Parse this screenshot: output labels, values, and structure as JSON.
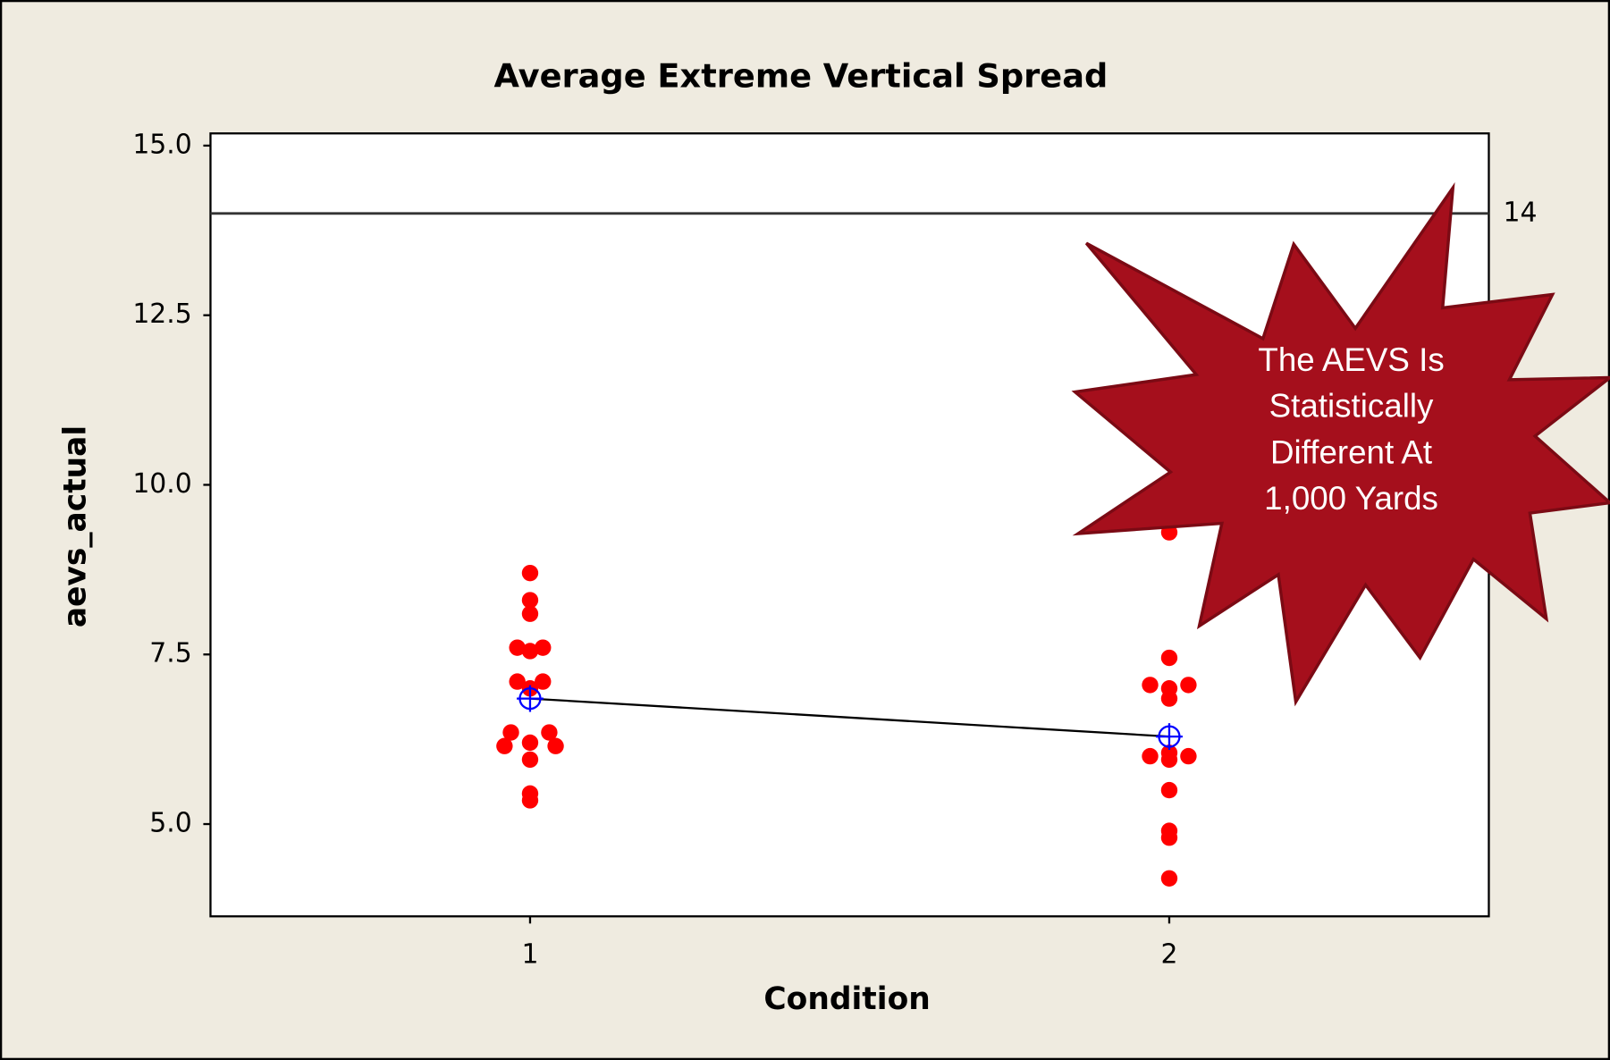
{
  "chart_data": {
    "type": "scatter",
    "title": "Average Extreme Vertical Spread",
    "x_label": "Condition",
    "y_label": "aevs_actual",
    "xlim": [
      0.5,
      2.5
    ],
    "ylim": [
      3.64,
      15.18
    ],
    "xticks": [
      1,
      2
    ],
    "yticks": [
      {
        "value": 5,
        "label": "5.0"
      },
      {
        "value": 7.5,
        "label": "7.5"
      },
      {
        "value": 10,
        "label": "10.0"
      },
      {
        "value": 12.5,
        "label": "12.5"
      },
      {
        "value": 15,
        "label": "15.0"
      }
    ],
    "reference_line": 14,
    "points": {
      "color": "#ff0000",
      "x": [
        1,
        1,
        1,
        0.98,
        1.02,
        1,
        0.98,
        1.02,
        1,
        0.97,
        1.03,
        0.96,
        1,
        1.04,
        1,
        1,
        1,
        2,
        2,
        1.97,
        2.03,
        2,
        2,
        1.97,
        2.03,
        2,
        2,
        2,
        2,
        2,
        2
      ],
      "values": [
        8.7,
        8.3,
        8.1,
        7.6,
        7.6,
        7.55,
        7.1,
        7.1,
        7.0,
        6.35,
        6.35,
        6.15,
        6.2,
        6.15,
        5.95,
        5.45,
        5.35,
        9.3,
        7.45,
        7.05,
        7.05,
        7.0,
        6.85,
        6.0,
        6.0,
        6.05,
        5.95,
        5.5,
        4.9,
        4.8,
        4.2
      ]
    },
    "means": {
      "color": "#0000ff",
      "x": [
        1,
        2
      ],
      "values": [
        6.85,
        6.29
      ]
    },
    "annotation": [
      "The AEVS Is",
      "Statistically",
      "Different At",
      "1,000 Yards"
    ]
  }
}
